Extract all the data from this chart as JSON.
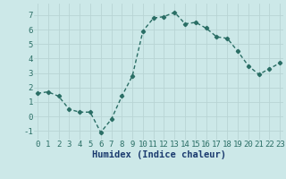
{
  "x": [
    0,
    1,
    2,
    3,
    4,
    5,
    6,
    7,
    8,
    9,
    10,
    11,
    12,
    13,
    14,
    15,
    16,
    17,
    18,
    19,
    20,
    21,
    22,
    23
  ],
  "y": [
    1.6,
    1.7,
    1.4,
    0.5,
    0.3,
    0.3,
    -1.1,
    -0.2,
    1.4,
    2.8,
    5.9,
    6.8,
    6.9,
    7.2,
    6.4,
    6.5,
    6.1,
    5.5,
    5.4,
    4.5,
    3.5,
    2.9,
    3.3,
    3.7
  ],
  "line_color": "#2a6e65",
  "marker": "D",
  "marker_size": 2.2,
  "linewidth": 1.0,
  "bg_color": "#cce8e8",
  "grid_color": "#b8d4d4",
  "xlabel": "Humidex (Indice chaleur)",
  "xlabel_fontsize": 7.5,
  "xlabel_color": "#1a3a6e",
  "xtick_labels": [
    "0",
    "1",
    "2",
    "3",
    "4",
    "5",
    "6",
    "7",
    "8",
    "9",
    "10",
    "11",
    "12",
    "13",
    "14",
    "15",
    "16",
    "17",
    "18",
    "19",
    "20",
    "21",
    "22",
    "23"
  ],
  "yticks": [
    -1,
    0,
    1,
    2,
    3,
    4,
    5,
    6,
    7
  ],
  "ylim": [
    -1.6,
    7.8
  ],
  "xlim": [
    -0.3,
    23.3
  ],
  "tick_fontsize": 6.5
}
